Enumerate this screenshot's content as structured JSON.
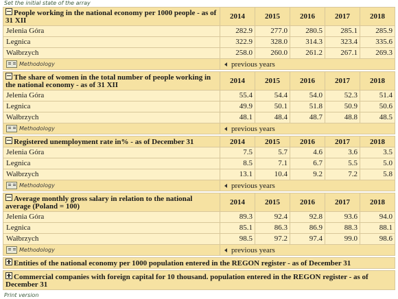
{
  "top_link": "Set the initial state of the array",
  "years": [
    "2014",
    "2015",
    "2016",
    "2017",
    "2018"
  ],
  "methodology": "Methodology",
  "previous_years": "previous years",
  "blocks": [
    {
      "title": "People working in the national economy per 1000 people - as of 31 XII",
      "rows": [
        {
          "name": "Jelenia Góra",
          "values": [
            "282.9",
            "277.0",
            "280.5",
            "285.1",
            "285.9"
          ]
        },
        {
          "name": "Legnica",
          "values": [
            "322.9",
            "328.0",
            "314.3",
            "323.4",
            "335.6"
          ]
        },
        {
          "name": "Wałbrzych",
          "values": [
            "258.0",
            "260.0",
            "261.2",
            "267.1",
            "269.3"
          ]
        }
      ]
    },
    {
      "title": "The share of women in the total number of people working in the national economy - as of 31 XII",
      "rows": [
        {
          "name": "Jelenia Góra",
          "values": [
            "55.4",
            "54.4",
            "54.0",
            "52.3",
            "51.4"
          ]
        },
        {
          "name": "Legnica",
          "values": [
            "49.9",
            "50.1",
            "51.8",
            "50.9",
            "50.6"
          ]
        },
        {
          "name": "Wałbrzych",
          "values": [
            "48.1",
            "48.4",
            "48.7",
            "48.8",
            "48.5"
          ]
        }
      ]
    },
    {
      "title": "Registered unemployment rate in% - as of December 31",
      "rows": [
        {
          "name": "Jelenia Góra",
          "values": [
            "7.5",
            "5.7",
            "4.6",
            "3.6",
            "3.5"
          ]
        },
        {
          "name": "Legnica",
          "values": [
            "8.5",
            "7.1",
            "6.7",
            "5.5",
            "5.0"
          ]
        },
        {
          "name": "Wałbrzych",
          "values": [
            "13.1",
            "10.4",
            "9.2",
            "7.2",
            "5.8"
          ]
        }
      ]
    },
    {
      "title": "Average monthly gross salary in relation to the national average (Poland = 100)",
      "rows": [
        {
          "name": "Jelenia Góra",
          "values": [
            "89.3",
            "92.4",
            "92.8",
            "93.6",
            "94.0"
          ]
        },
        {
          "name": "Legnica",
          "values": [
            "85.1",
            "86.3",
            "86.9",
            "88.3",
            "88.1"
          ]
        },
        {
          "name": "Wałbrzych",
          "values": [
            "98.5",
            "97.2",
            "97.4",
            "99.0",
            "98.6"
          ]
        }
      ]
    }
  ],
  "collapsed": [
    "Entities of the national economy per 1000 population entered in the REGON register - as of December 31",
    "Commercial companies with foreign capital for 10 thousand. population entered in the REGON register - as of December 31"
  ],
  "print_version": "Print version"
}
